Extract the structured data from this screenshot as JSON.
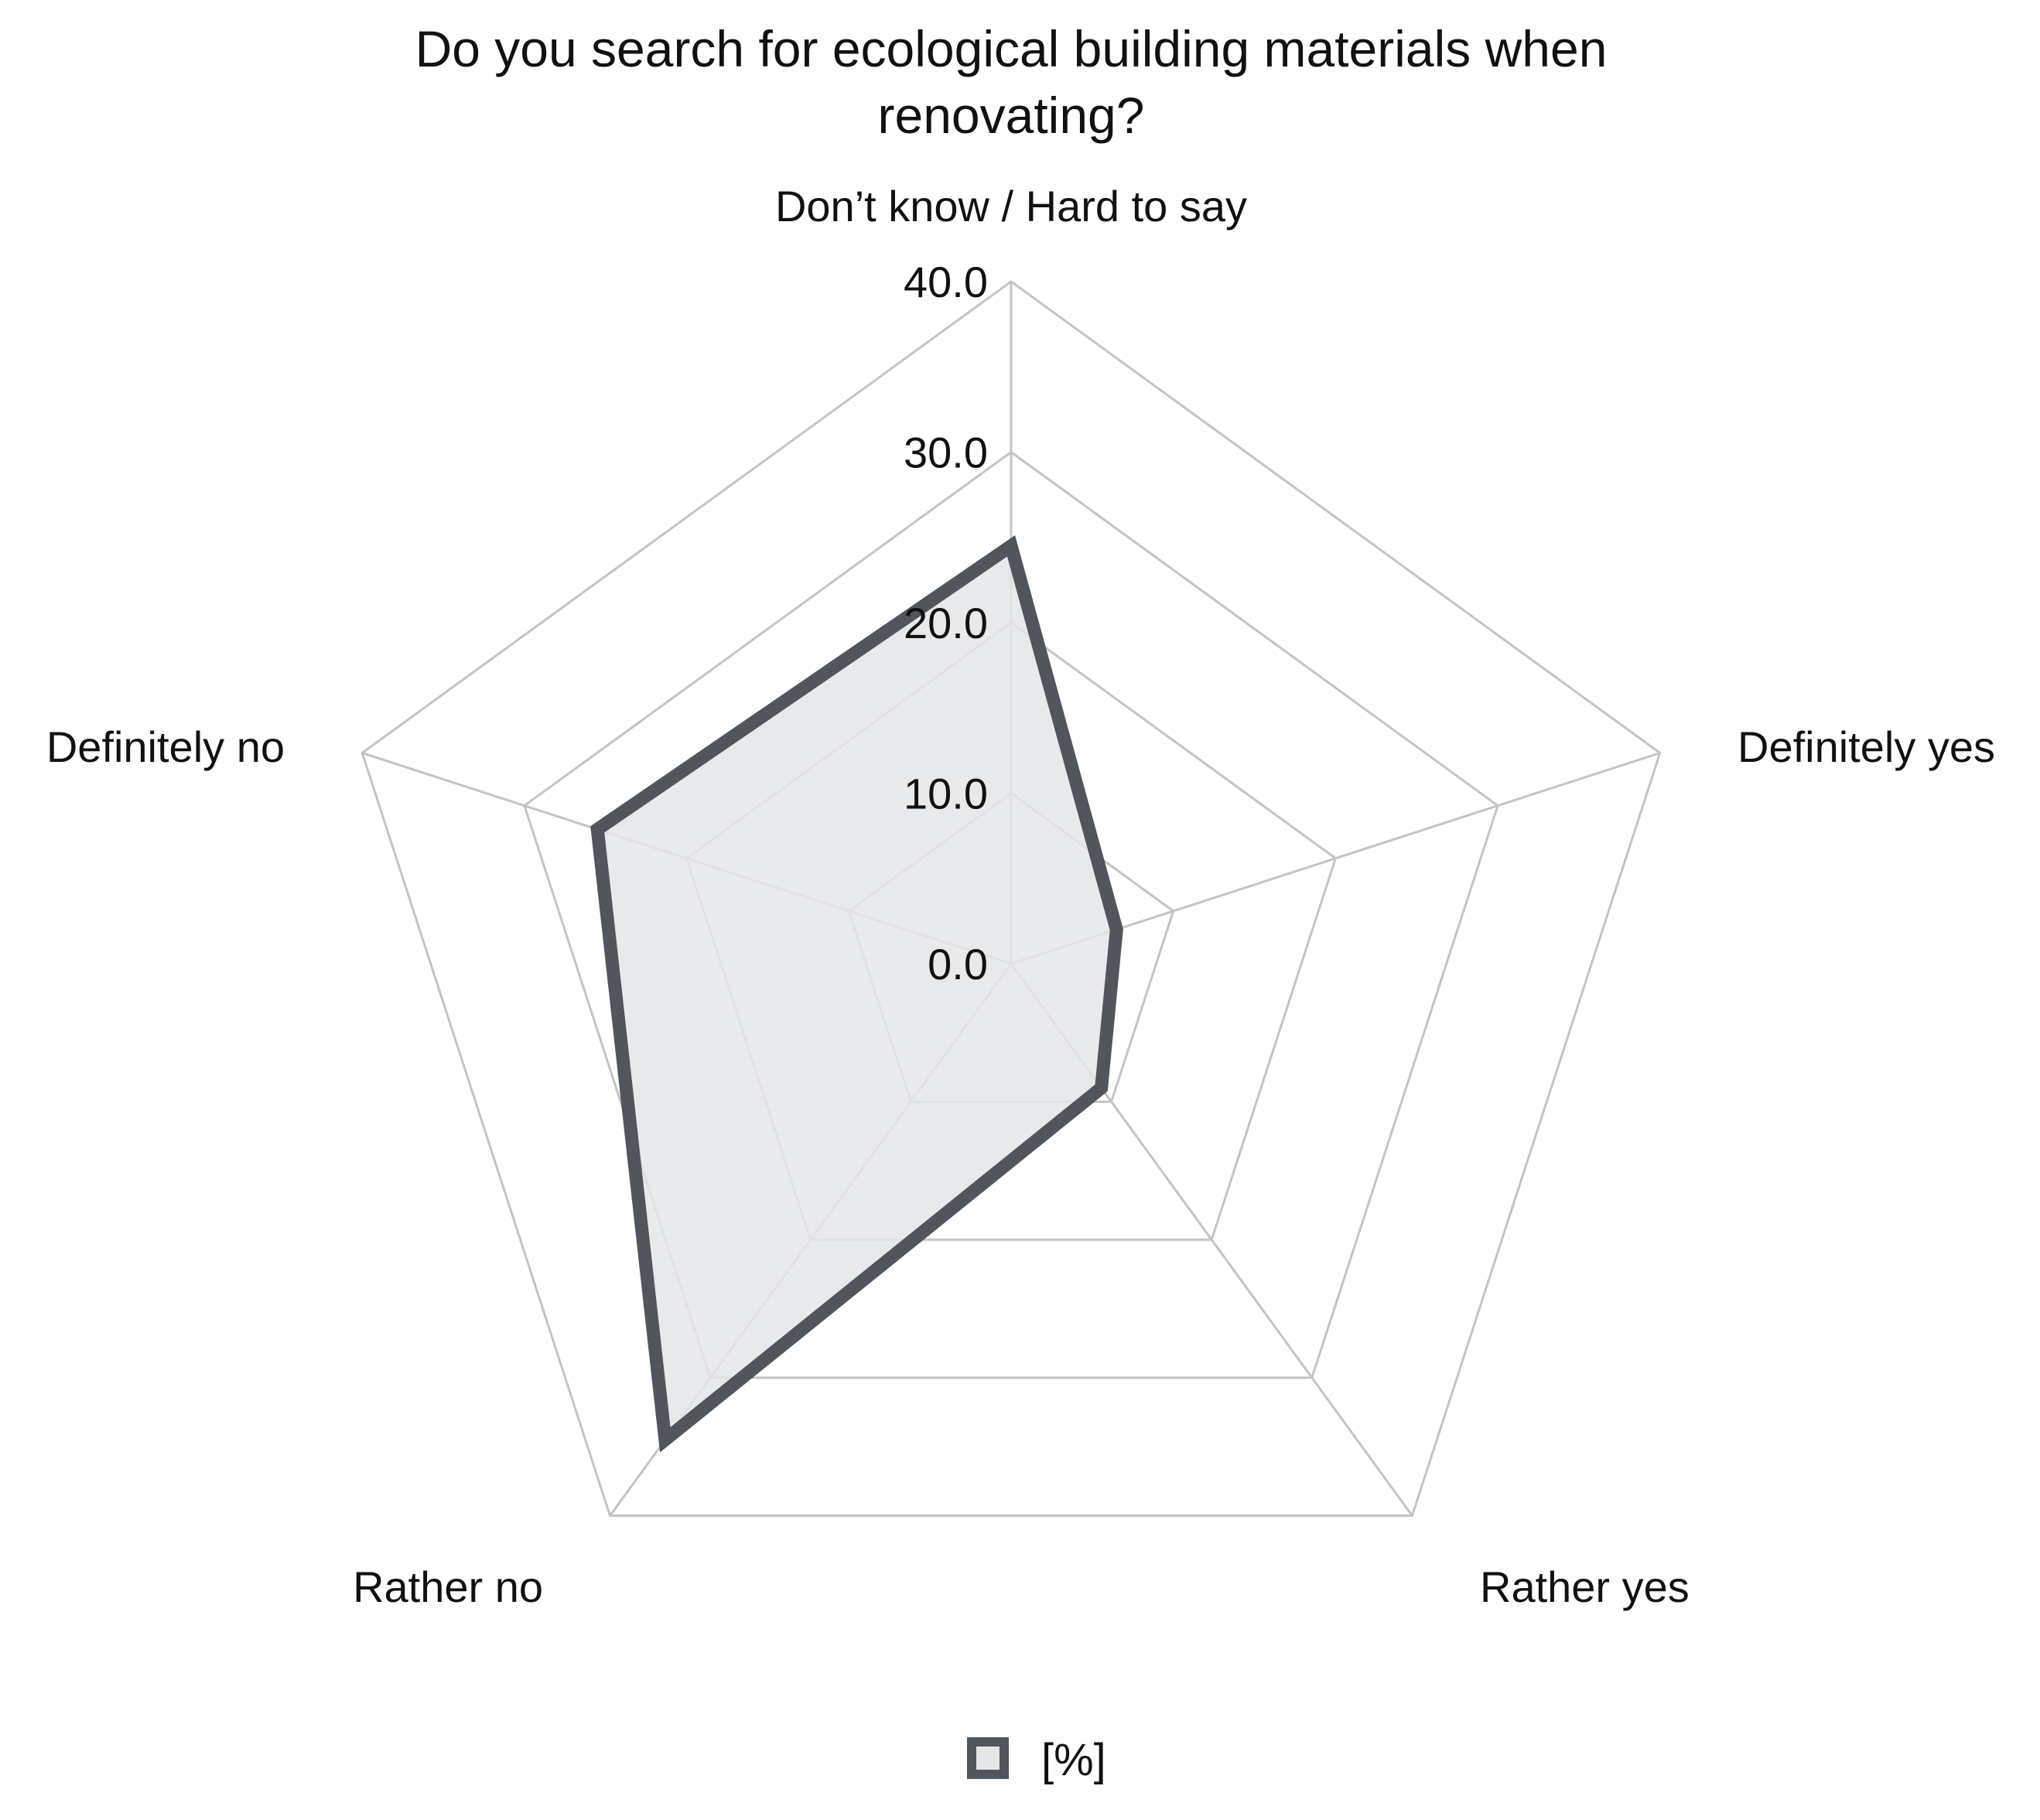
{
  "chart_data": {
    "type": "radar",
    "title_lines": [
      "Do you search for ecological building materials when",
      "renovating?"
    ],
    "categories": [
      "Don’t know / Hard to say",
      "Definitely yes",
      "Rather yes",
      "Rather no",
      "Definitely no"
    ],
    "ticks": [
      "0.0",
      "10.0",
      "20.0",
      "30.0",
      "40.0"
    ],
    "range": [
      0,
      40
    ],
    "grid": true,
    "series": [
      {
        "name": "[%]",
        "values": [
          24.5,
          6.5,
          9.0,
          34.5,
          25.5
        ]
      }
    ],
    "legend": {
      "position": "bottom"
    },
    "colors": {
      "line": "#50565c",
      "fill": "#e4e5e7",
      "grid": "#c4c4c4"
    }
  }
}
